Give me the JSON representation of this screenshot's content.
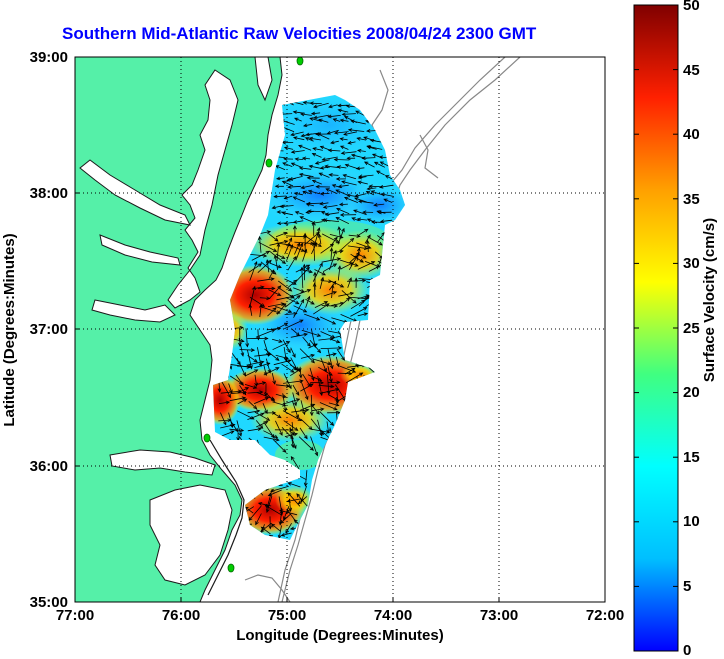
{
  "title": "Southern Mid-Atlantic Raw Velocities 2008/04/24 2300 GMT",
  "x_axis": {
    "label": "Longitude (Degrees:Minutes)",
    "ticks": [
      "77:00",
      "76:00",
      "75:00",
      "74:00",
      "73:00",
      "72:00"
    ]
  },
  "y_axis": {
    "label": "Latitude (Degrees:Minutes)",
    "ticks": [
      "39:00",
      "38:00",
      "37:00",
      "36:00",
      "35:00"
    ]
  },
  "colorbar": {
    "label": "Surface Velocity (cm/s)",
    "ticks": [
      "50",
      "45",
      "40",
      "35",
      "30",
      "25",
      "20",
      "15",
      "10",
      "5",
      "0"
    ],
    "min": 0,
    "max": 50,
    "colors": [
      "#0000ff",
      "#00bfff",
      "#00ffff",
      "#40ff80",
      "#ffff00",
      "#ffa000",
      "#ff2000",
      "#800000"
    ]
  },
  "colors": {
    "land": "#55f0a8",
    "coastline": "#1a1a1a",
    "bathymetry": "#888888",
    "station": "#00cc00",
    "title": "#0000ff"
  },
  "chart_data": {
    "type": "heatmap",
    "title": "Southern Mid-Atlantic Raw Velocities 2008/04/24 2300 GMT",
    "xlabel": "Longitude (Degrees:Minutes)",
    "ylabel": "Latitude (Degrees:Minutes)",
    "xlim": [
      "77:00 W",
      "72:00 W"
    ],
    "ylim": [
      "35:00 N",
      "39:00 N"
    ],
    "grid": true,
    "colorbar_range_cm_s": [
      0,
      50
    ],
    "velocity_hotspots_cm_s": [
      {
        "lon": "75:20 W",
        "lat": "37:15 N",
        "speed": 45
      },
      {
        "lon": "74:45 W",
        "lat": "36:45 N",
        "speed": 45
      },
      {
        "lon": "75:10 W",
        "lat": "36:43 N",
        "speed": 40
      },
      {
        "lon": "75:15 W",
        "lat": "35:45 N",
        "speed": 40
      },
      {
        "lon": "74:40 W",
        "lat": "37:25 N",
        "speed": 32
      },
      {
        "lon": "74:10 W",
        "lat": "37:35 N",
        "speed": 30
      },
      {
        "lon": "74:20 W",
        "lat": "36:45 N",
        "speed": 28
      },
      {
        "lon": "74:50 W",
        "lat": "38:00 N",
        "speed": 10
      },
      {
        "lon": "74:30 W",
        "lat": "38:05 N",
        "speed": 8
      },
      {
        "lon": "74:45 W",
        "lat": "36:50 N",
        "speed": 14
      }
    ]
  }
}
